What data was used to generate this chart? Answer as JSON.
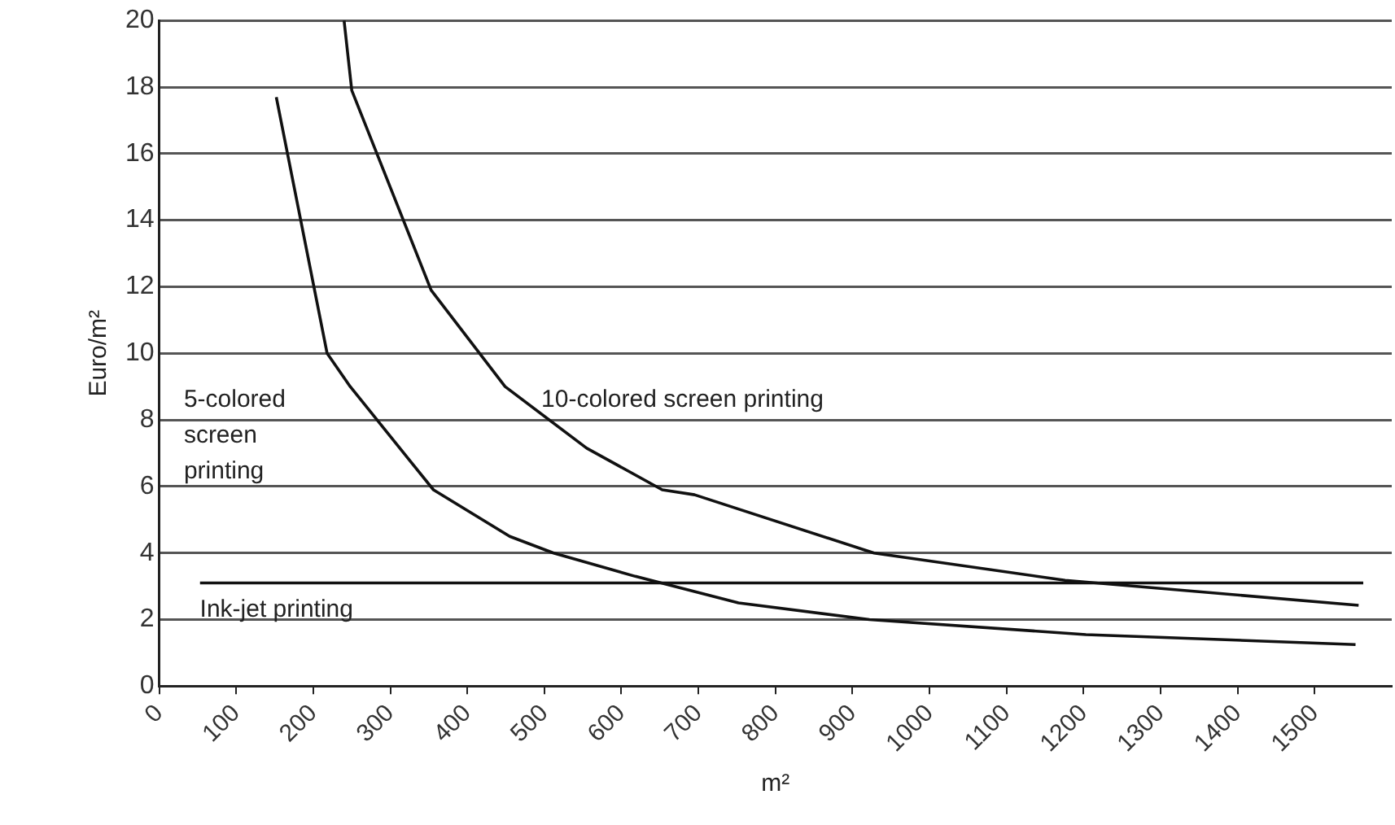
{
  "chart_data": {
    "type": "line",
    "xlabel": "m²",
    "ylabel": "Euro/m²",
    "xlim": [
      0,
      1600
    ],
    "xticks": [
      0,
      100,
      200,
      300,
      400,
      500,
      600,
      700,
      800,
      900,
      1000,
      1100,
      1200,
      1300,
      1400,
      1500
    ],
    "ylim": [
      0,
      20
    ],
    "yticks": [
      0,
      2,
      4,
      6,
      8,
      10,
      12,
      14,
      16,
      18,
      20
    ],
    "grid": "y",
    "legend": false,
    "marker": "none",
    "line_style": "solid",
    "series": [
      {
        "name": "5-colored screen printing",
        "color": "#111111",
        "x": [
          152,
          218,
          248,
          356,
          455,
          512,
          618,
          752,
          922,
          1203,
          1553
        ],
        "values": [
          17.7,
          10,
          9.0,
          5.9,
          4.5,
          4.0,
          3.3,
          2.5,
          2.0,
          1.55,
          1.25
        ]
      },
      {
        "name": "10-colored screen printing",
        "color": "#111111",
        "x": [
          240,
          250,
          353,
          449,
          555,
          653,
          695,
          928,
          1176,
          1557
        ],
        "values": [
          20,
          17.9,
          11.9,
          9.0,
          7.15,
          5.9,
          5.75,
          4.0,
          3.18,
          2.43
        ]
      },
      {
        "name": "Ink-jet printing",
        "color": "#111111",
        "x": [
          53,
          1563
        ],
        "values": [
          3.1,
          3.1
        ]
      }
    ]
  }
}
